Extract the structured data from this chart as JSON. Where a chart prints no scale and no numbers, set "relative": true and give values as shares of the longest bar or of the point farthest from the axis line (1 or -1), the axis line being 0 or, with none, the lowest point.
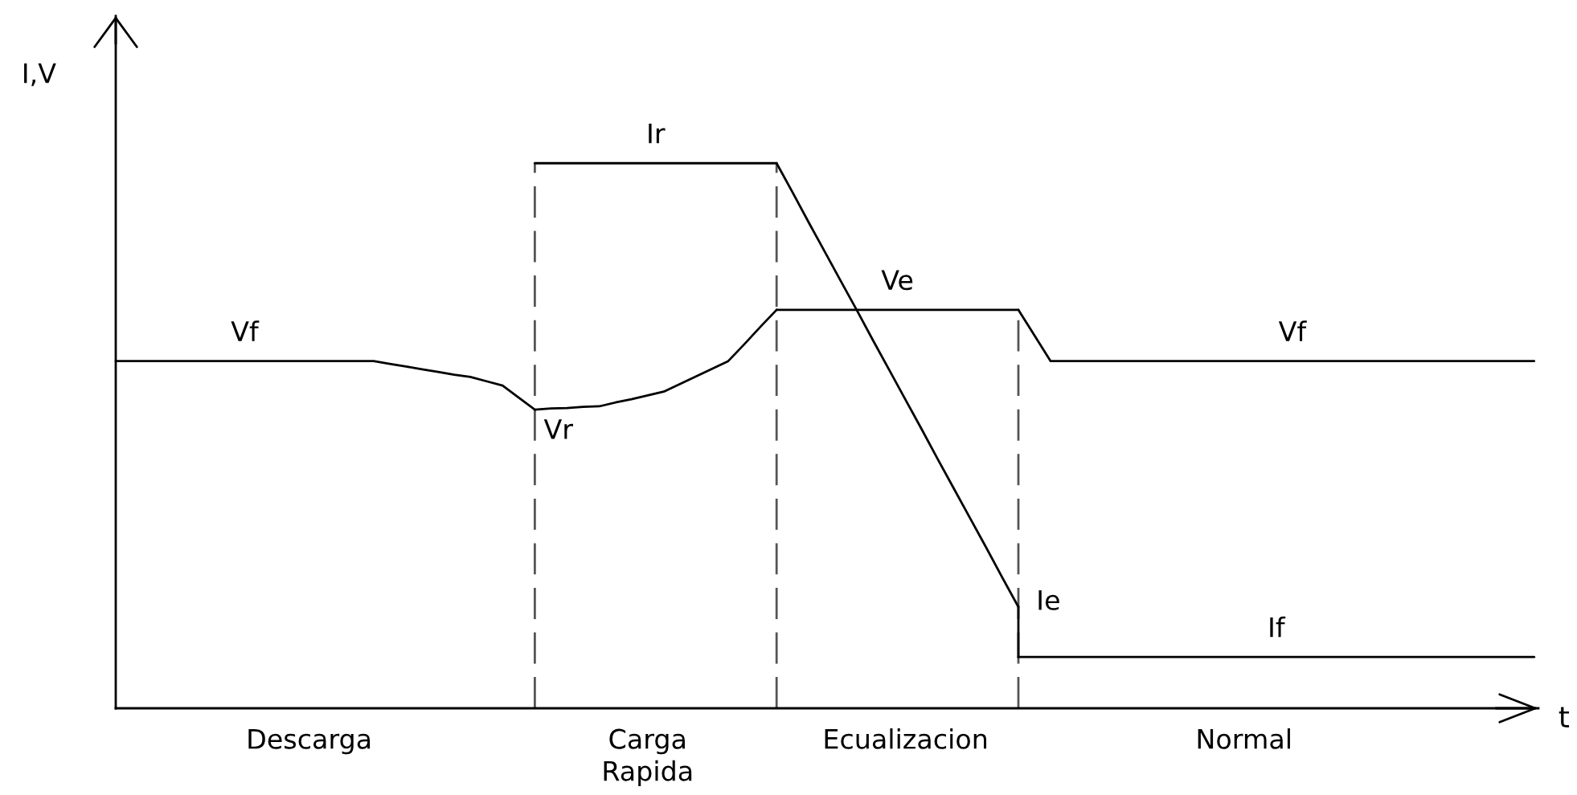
{
  "chart_data": {
    "type": "line",
    "relative": true,
    "xlabel": "t",
    "ylabel": "I,V",
    "tick_labels": "x",
    "categories": [
      null,
      null,
      null,
      null,
      null,
      null,
      null,
      null,
      null,
      null,
      null,
      null,
      "Descarga",
      null,
      null,
      null,
      null,
      null,
      null,
      null,
      null,
      null,
      null,
      null,
      null,
      null,
      null,
      null,
      null,
      null,
      null,
      null,
      null,
      "Carga\nRapida",
      null,
      null,
      null,
      null,
      null,
      null,
      null,
      null,
      null,
      null,
      null,
      null,
      null,
      null,
      null,
      "Ecualizacion",
      null,
      null,
      null,
      null,
      null,
      null,
      null,
      null,
      null,
      null,
      null,
      null,
      null,
      null,
      null,
      null,
      null,
      null,
      null,
      null,
      "Normal",
      null,
      null,
      null,
      null,
      null,
      null,
      null,
      null,
      null,
      null,
      null,
      null,
      null,
      null,
      null,
      null,
      null,
      null
    ],
    "series": [
      {
        "name": "Vf",
        "color": "#000000",
        "values": [
          0.637,
          0.637,
          0.637,
          0.637,
          0.637,
          0.637,
          0.637,
          0.637,
          0.637,
          0.637,
          0.637,
          0.637,
          0.637,
          0.637,
          0.637,
          0.637,
          0.637,
          0.632,
          0.627,
          0.622,
          0.617,
          0.612,
          0.608,
          0.6,
          0.592,
          0.57,
          0.548,
          null,
          null,
          null,
          null,
          null,
          null,
          null,
          null,
          null,
          null,
          null,
          null,
          null,
          null,
          null,
          null,
          null,
          null,
          null,
          null,
          null,
          null,
          null,
          null,
          null,
          null,
          null,
          null,
          null,
          null,
          null,
          null,
          null,
          null,
          null,
          null,
          null,
          null,
          null,
          null,
          null,
          null,
          null,
          null,
          null,
          null,
          null,
          null,
          null,
          null,
          null,
          null,
          null,
          null,
          null,
          null,
          null,
          null,
          null,
          null,
          null,
          null
        ]
      },
      {
        "name": "Vr",
        "color": "#000000",
        "values": [
          null,
          null,
          null,
          null,
          null,
          null,
          null,
          null,
          null,
          null,
          null,
          null,
          null,
          null,
          null,
          null,
          null,
          null,
          null,
          null,
          null,
          null,
          null,
          null,
          null,
          null,
          0.548,
          0.55,
          0.551,
          0.553,
          0.554,
          0.561,
          0.567,
          0.574,
          0.581,
          0.595,
          0.609,
          0.623,
          0.637,
          0.668,
          0.7,
          0.731,
          null,
          null,
          null,
          null,
          null,
          null,
          null,
          null,
          null,
          null,
          null,
          null,
          null,
          null,
          null,
          null,
          null,
          null,
          null,
          null,
          null,
          null,
          null,
          null,
          null,
          null,
          null,
          null,
          null,
          null,
          null,
          null,
          null,
          null,
          null,
          null,
          null,
          null,
          null,
          null,
          null,
          null,
          null,
          null,
          null,
          null,
          null
        ]
      },
      {
        "name": "Ve",
        "color": "#000000",
        "values": [
          null,
          null,
          null,
          null,
          null,
          null,
          null,
          null,
          null,
          null,
          null,
          null,
          null,
          null,
          null,
          null,
          null,
          null,
          null,
          null,
          null,
          null,
          null,
          null,
          null,
          null,
          null,
          null,
          null,
          null,
          null,
          null,
          null,
          null,
          null,
          null,
          null,
          null,
          null,
          null,
          null,
          0.731,
          0.731,
          0.731,
          0.731,
          0.731,
          0.731,
          0.731,
          0.731,
          0.731,
          0.731,
          0.731,
          0.731,
          0.731,
          0.731,
          0.731,
          0.731,
          null,
          null,
          null,
          null,
          null,
          null,
          null,
          null,
          null,
          null,
          null,
          null,
          null,
          null,
          null,
          null,
          null,
          null,
          null,
          null,
          null,
          null,
          null,
          null,
          null,
          null,
          null,
          null,
          null,
          null,
          null,
          null
        ]
      },
      {
        "name": "Vf",
        "color": "#000000",
        "values": [
          null,
          null,
          null,
          null,
          null,
          null,
          null,
          null,
          null,
          null,
          null,
          null,
          null,
          null,
          null,
          null,
          null,
          null,
          null,
          null,
          null,
          null,
          null,
          null,
          null,
          null,
          null,
          null,
          null,
          null,
          null,
          null,
          null,
          null,
          null,
          null,
          null,
          null,
          null,
          null,
          null,
          null,
          null,
          null,
          null,
          null,
          null,
          null,
          null,
          null,
          null,
          null,
          null,
          null,
          null,
          null,
          0.731,
          0.684,
          0.637,
          0.637,
          0.637,
          0.637,
          0.637,
          0.637,
          0.637,
          0.637,
          0.637,
          0.637,
          0.637,
          0.637,
          0.637,
          0.637,
          0.637,
          0.637,
          0.637,
          0.637,
          0.637,
          0.637,
          0.637,
          0.637,
          0.637,
          0.637,
          0.637,
          0.637,
          0.637,
          0.637,
          0.637,
          0.637,
          0.637
        ]
      },
      {
        "name": "Ir",
        "color": "#000000",
        "values": [
          null,
          null,
          null,
          null,
          null,
          null,
          null,
          null,
          null,
          null,
          null,
          null,
          null,
          null,
          null,
          null,
          null,
          null,
          null,
          null,
          null,
          null,
          null,
          null,
          null,
          null,
          1,
          1,
          1,
          1,
          1,
          1,
          1,
          1,
          1,
          1,
          1,
          1,
          1,
          1,
          1,
          1,
          null,
          null,
          null,
          null,
          null,
          null,
          null,
          null,
          null,
          null,
          null,
          null,
          null,
          null,
          null,
          null,
          null,
          null,
          null,
          null,
          null,
          null,
          null,
          null,
          null,
          null,
          null,
          null,
          null,
          null,
          null,
          null,
          null,
          null,
          null,
          null,
          null,
          null,
          null,
          null,
          null,
          null,
          null,
          null,
          null,
          null,
          null
        ]
      },
      {
        "name": "Ie",
        "color": "#000000",
        "values": [
          null,
          null,
          null,
          null,
          null,
          null,
          null,
          null,
          null,
          null,
          null,
          null,
          null,
          null,
          null,
          null,
          null,
          null,
          null,
          null,
          null,
          null,
          null,
          null,
          null,
          null,
          null,
          null,
          null,
          null,
          null,
          null,
          null,
          null,
          null,
          null,
          null,
          null,
          null,
          null,
          null,
          1,
          0.946,
          0.891,
          0.837,
          0.783,
          0.729,
          0.674,
          0.62,
          0.566,
          0.512,
          0.457,
          0.403,
          0.349,
          0.295,
          0.24,
          0.186,
          null,
          null,
          null,
          null,
          null,
          null,
          null,
          null,
          null,
          null,
          null,
          null,
          null,
          null,
          null,
          null,
          null,
          null,
          null,
          null,
          null,
          null,
          null,
          null,
          null,
          null,
          null,
          null,
          null,
          null,
          null,
          null
        ]
      },
      {
        "name": "If",
        "color": "#000000",
        "values": [
          null,
          null,
          null,
          null,
          null,
          null,
          null,
          null,
          null,
          null,
          null,
          null,
          null,
          null,
          null,
          null,
          null,
          null,
          null,
          null,
          null,
          null,
          null,
          null,
          null,
          null,
          null,
          null,
          null,
          null,
          null,
          null,
          null,
          null,
          null,
          null,
          null,
          null,
          null,
          null,
          null,
          null,
          null,
          null,
          null,
          null,
          null,
          null,
          null,
          null,
          null,
          null,
          null,
          null,
          null,
          null,
          0.094,
          0.094,
          0.094,
          0.094,
          0.094,
          0.094,
          0.094,
          0.094,
          0.094,
          0.094,
          0.094,
          0.094,
          0.094,
          0.094,
          0.094,
          0.094,
          0.094,
          0.094,
          0.094,
          0.094,
          0.094,
          0.094,
          0.094,
          0.094,
          0.094,
          0.094,
          0.094,
          0.094,
          0.094,
          0.094,
          0.094,
          0.094,
          0.094
        ]
      }
    ]
  }
}
